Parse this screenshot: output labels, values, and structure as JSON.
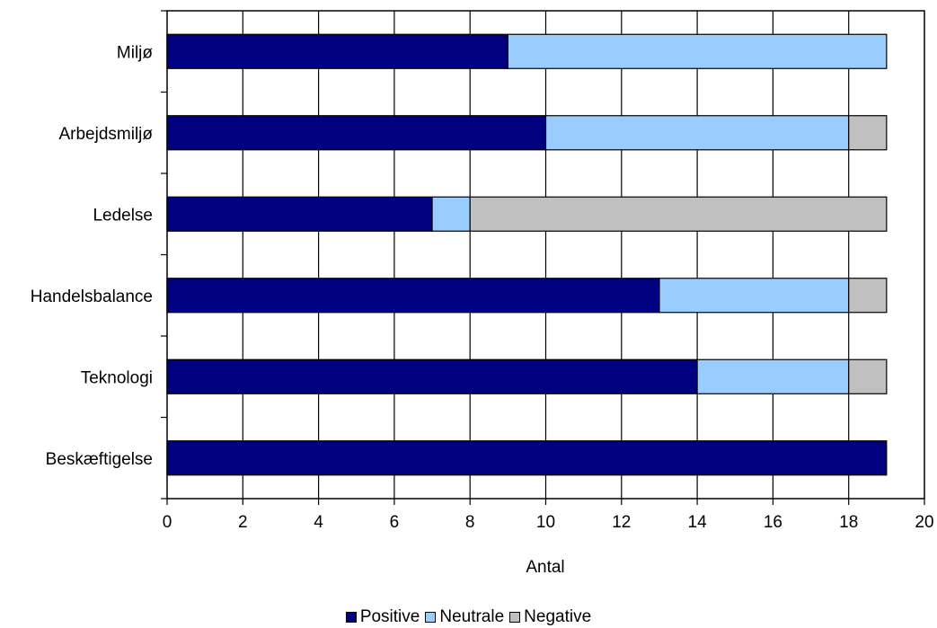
{
  "chart_data": {
    "type": "bar",
    "orientation": "horizontal",
    "stacked": true,
    "categories": [
      "Miljø",
      "Arbejdsmiljø",
      "Ledelse",
      "Handelsbalance",
      "Teknologi",
      "Beskæftigelse"
    ],
    "series": [
      {
        "name": "Positive",
        "color": "#000080",
        "values": [
          9,
          10,
          7,
          13,
          14,
          19
        ]
      },
      {
        "name": "Neutrale",
        "color": "#99ccff",
        "values": [
          10,
          8,
          1,
          5,
          4,
          0
        ]
      },
      {
        "name": "Negative",
        "color": "#c0c0c0",
        "values": [
          0,
          1,
          11,
          1,
          1,
          0
        ]
      }
    ],
    "xlabel": "Antal",
    "xlim": [
      0,
      20
    ],
    "xticks": [
      "0",
      "2",
      "4",
      "6",
      "8",
      "10",
      "12",
      "14",
      "16",
      "18",
      "20"
    ],
    "grid": "vertical",
    "legend_position": "bottom"
  }
}
